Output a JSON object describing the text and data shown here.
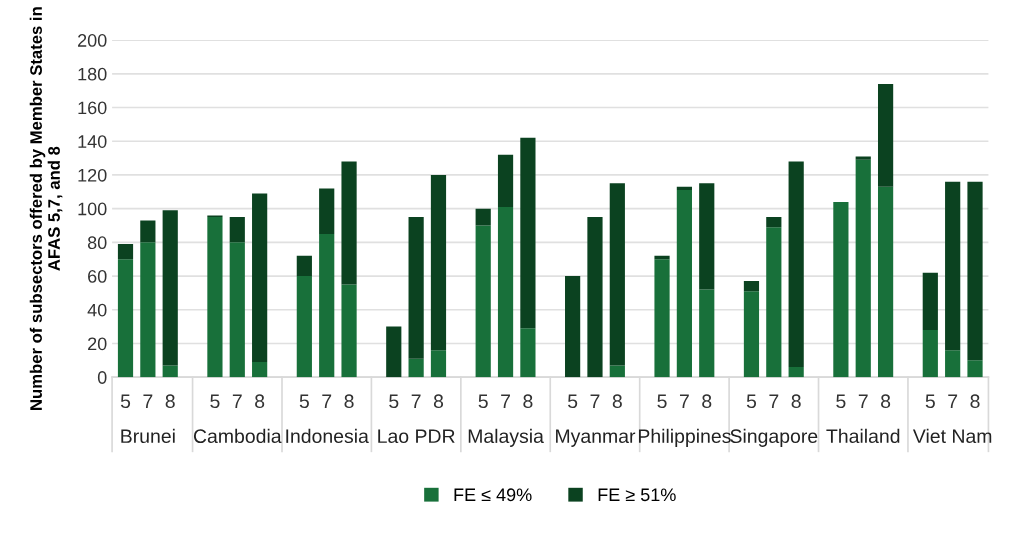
{
  "chart_data": {
    "type": "bar",
    "stacked": true,
    "ylabel": "Number of subsectors offered by Member States in AFAS 5,7, and 8",
    "categories": [
      "5",
      "7",
      "8",
      null,
      "5",
      "7",
      "8",
      null,
      "5",
      "7",
      "8",
      null,
      "5",
      "7",
      "8",
      null,
      "5",
      "7",
      "8",
      null,
      "5",
      "7",
      "8",
      null,
      "5",
      "7",
      "8",
      null,
      "5",
      "7",
      "8",
      null,
      "5",
      "7",
      "8",
      null,
      "5",
      "7",
      "8"
    ],
    "series": [
      {
        "name": "FE ≤ 49%",
        "color": "#18703a",
        "values": [
          70,
          80,
          7,
          null,
          95,
          80,
          9,
          null,
          60,
          85,
          55,
          null,
          0,
          11,
          16,
          null,
          90,
          101,
          29,
          null,
          0,
          0,
          7,
          null,
          70,
          111,
          52,
          null,
          51,
          89,
          6,
          null,
          104,
          129,
          113,
          null,
          28,
          16,
          10
        ]
      },
      {
        "name": "FE ≥ 51%",
        "color": "#0b4220",
        "values": [
          9,
          13,
          92,
          null,
          1,
          15,
          100,
          null,
          12,
          27,
          73,
          null,
          30,
          84,
          104,
          null,
          10,
          31,
          113,
          null,
          60,
          95,
          108,
          null,
          2,
          2,
          63,
          null,
          6,
          6,
          122,
          null,
          0,
          2,
          61,
          null,
          34,
          100,
          106
        ]
      }
    ],
    "annotations": [
      "Brunei",
      "Cambodia",
      "Indonesia",
      "Lao PDR",
      "Malaysia",
      "Myanmar",
      "Philippines",
      "Singapore",
      "Thailand",
      "Viet Nam"
    ],
    "ylim": [
      0,
      200
    ],
    "yticks": [
      0,
      20,
      40,
      60,
      80,
      100,
      120,
      140,
      160,
      180,
      200
    ],
    "grid": "y",
    "legend": "bottom"
  }
}
